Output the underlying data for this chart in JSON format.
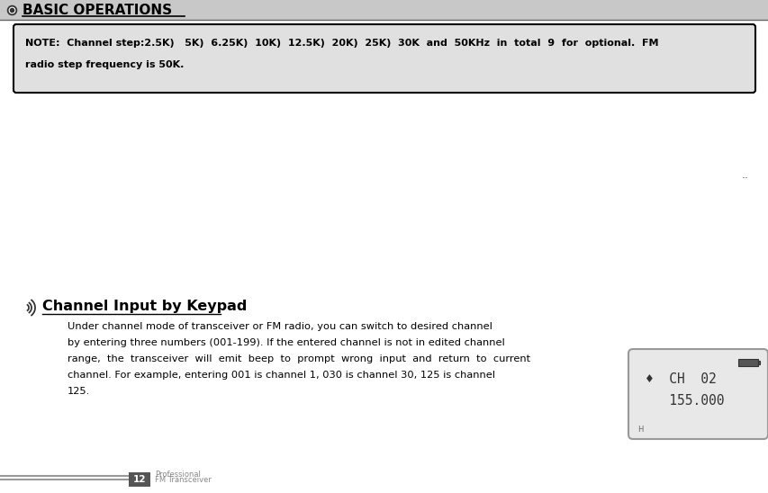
{
  "bg_color": "#ffffff",
  "header_bg": "#c8c8c8",
  "header_text": "BASIC OPERATIONS",
  "header_text_color": "#000000",
  "note_box_bg": "#e0e0e0",
  "note_box_border": "#000000",
  "note_text_line1": "NOTE:  Channel step:2.5K)   5K)  6.25K)  10K)  12.5K)  20K)  25K)  30K  and  50KHz  in  total  9  for  optional.  FM",
  "note_text_line2": "radio step frequency is 50K.",
  "dots_text": "..",
  "section_title": "Channel Input by Keypad",
  "body_text_line1": "Under channel mode of transceiver or FM radio, you can switch to desired channel",
  "body_text_line2": "by entering three numbers (001-199). If the entered channel is not in edited channel",
  "body_text_line3": "range,  the  transceiver  will  emit  beep  to  prompt  wrong  input  and  return  to  current",
  "body_text_line4": "channel. For example, entering 001 is channel 1, 030 is channel 30, 125 is channel",
  "body_text_line5": "125.",
  "lcd_bg": "#e8e8e8",
  "lcd_border": "#999999",
  "lcd_line1": "♦  CH  02",
  "lcd_line2": "   155.000",
  "lcd_h": "H",
  "page_num": "12",
  "footer_text1": "Professional",
  "footer_text2": "FM Transceiver",
  "footer_line_color": "#999999"
}
